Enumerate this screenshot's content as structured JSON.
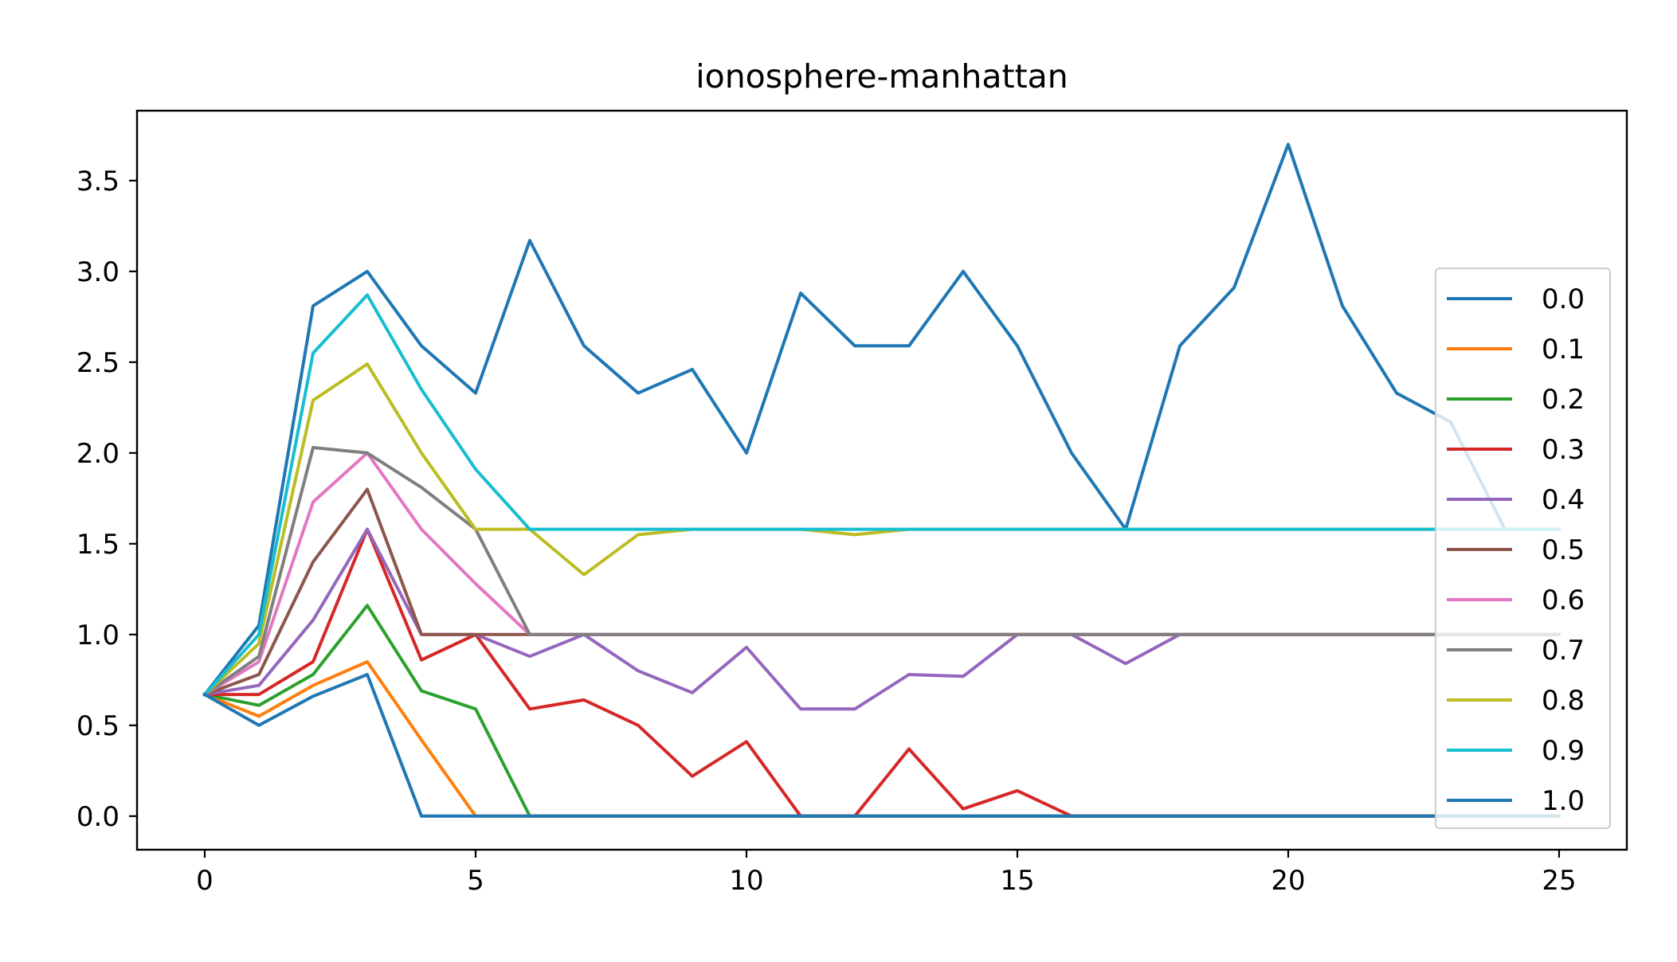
{
  "chart_data": {
    "type": "line",
    "title": "ionosphere-manhattan",
    "xlabel": "",
    "ylabel": "",
    "xlim": [
      -1.25,
      26.25
    ],
    "ylim": [
      -0.185,
      3.885
    ],
    "xticks": [
      0,
      5,
      10,
      15,
      20,
      25
    ],
    "xtick_labels": [
      "0",
      "5",
      "10",
      "15",
      "20",
      "25"
    ],
    "yticks": [
      0.0,
      0.5,
      1.0,
      1.5,
      2.0,
      2.5,
      3.0,
      3.5
    ],
    "ytick_labels": [
      "0.0",
      "0.5",
      "1.0",
      "1.5",
      "2.0",
      "2.5",
      "3.0",
      "3.5"
    ],
    "grid": false,
    "legend": {
      "placement": "right",
      "framealpha": 0.8
    },
    "x": [
      0,
      1,
      2,
      3,
      4,
      5,
      6,
      7,
      8,
      9,
      10,
      11,
      12,
      13,
      14,
      15,
      16,
      17,
      18,
      19,
      20,
      21,
      22,
      23,
      24,
      25
    ],
    "series": [
      {
        "name": "0.0",
        "color": "#1f77b4",
        "values": [
          0.67,
          1.05,
          2.81,
          3.0,
          2.59,
          2.33,
          3.17,
          2.59,
          2.33,
          2.46,
          2.0,
          2.88,
          2.59,
          2.59,
          3.0,
          2.59,
          2.0,
          1.58,
          2.59,
          2.91,
          3.7,
          2.81,
          2.33,
          2.17,
          1.58,
          1.58
        ]
      },
      {
        "name": "0.1",
        "color": "#ff7f0e",
        "values": [
          0.67,
          0.55,
          0.72,
          0.85,
          0.42,
          0.0,
          0.0,
          0.0,
          0.0,
          0.0,
          0.0,
          0.0,
          0.0,
          0.0,
          0.0,
          0.0,
          0.0,
          0.0,
          0.0,
          0.0,
          0.0,
          0.0,
          0.0,
          0.0,
          0.0,
          0.0
        ]
      },
      {
        "name": "0.2",
        "color": "#2ca02c",
        "values": [
          0.67,
          0.61,
          0.78,
          1.16,
          0.69,
          0.59,
          0.0,
          0.0,
          0.0,
          0.0,
          0.0,
          0.0,
          0.0,
          0.0,
          0.0,
          0.0,
          0.0,
          0.0,
          0.0,
          0.0,
          0.0,
          0.0,
          0.0,
          0.0,
          0.0,
          0.0
        ]
      },
      {
        "name": "0.3",
        "color": "#d62728",
        "values": [
          0.67,
          0.67,
          0.85,
          1.58,
          0.86,
          1.0,
          0.59,
          0.64,
          0.5,
          0.22,
          0.41,
          0.0,
          0.0,
          0.37,
          0.04,
          0.14,
          0.0,
          0.0,
          0.0,
          0.0,
          0.0,
          0.0,
          0.0,
          0.0,
          0.0,
          0.0
        ]
      },
      {
        "name": "0.4",
        "color": "#9467bd",
        "values": [
          0.67,
          0.72,
          1.08,
          1.58,
          1.0,
          1.0,
          0.88,
          1.0,
          0.8,
          0.68,
          0.93,
          0.59,
          0.59,
          0.78,
          0.77,
          1.0,
          1.0,
          0.84,
          1.0,
          1.0,
          1.0,
          1.0,
          1.0,
          1.0,
          1.0,
          1.0
        ]
      },
      {
        "name": "0.5",
        "color": "#8c564b",
        "values": [
          0.67,
          0.78,
          1.4,
          1.8,
          1.0,
          1.0,
          1.0,
          1.0,
          1.0,
          1.0,
          1.0,
          1.0,
          1.0,
          1.0,
          1.0,
          1.0,
          1.0,
          1.0,
          1.0,
          1.0,
          1.0,
          1.0,
          1.0,
          1.0,
          1.0,
          1.0
        ]
      },
      {
        "name": "0.6",
        "color": "#e377c2",
        "values": [
          0.67,
          0.85,
          1.73,
          2.0,
          1.58,
          1.28,
          1.0,
          1.0,
          1.0,
          1.0,
          1.0,
          1.0,
          1.0,
          1.0,
          1.0,
          1.0,
          1.0,
          1.0,
          1.0,
          1.0,
          1.0,
          1.0,
          1.0,
          1.0,
          1.0,
          1.0
        ]
      },
      {
        "name": "0.7",
        "color": "#7f7f7f",
        "values": [
          0.67,
          0.88,
          2.03,
          2.0,
          1.81,
          1.58,
          1.0,
          1.0,
          1.0,
          1.0,
          1.0,
          1.0,
          1.0,
          1.0,
          1.0,
          1.0,
          1.0,
          1.0,
          1.0,
          1.0,
          1.0,
          1.0,
          1.0,
          1.0,
          1.0,
          1.0
        ]
      },
      {
        "name": "0.8",
        "color": "#bcbd22",
        "values": [
          0.67,
          0.95,
          2.29,
          2.49,
          2.0,
          1.58,
          1.58,
          1.33,
          1.55,
          1.58,
          1.58,
          1.58,
          1.55,
          1.58,
          1.58,
          1.58,
          1.58,
          1.58,
          1.58,
          1.58,
          1.58,
          1.58,
          1.58,
          1.58,
          1.58,
          1.58
        ]
      },
      {
        "name": "0.9",
        "color": "#17becf",
        "values": [
          0.67,
          1.0,
          2.55,
          2.87,
          2.35,
          1.91,
          1.58,
          1.58,
          1.58,
          1.58,
          1.58,
          1.58,
          1.58,
          1.58,
          1.58,
          1.58,
          1.58,
          1.58,
          1.58,
          1.58,
          1.58,
          1.58,
          1.58,
          1.58,
          1.58,
          1.58
        ]
      },
      {
        "name": "1.0",
        "color": "#1f77b4",
        "values": [
          0.67,
          0.5,
          0.66,
          0.78,
          0.0,
          0.0,
          0.0,
          0.0,
          0.0,
          0.0,
          0.0,
          0.0,
          0.0,
          0.0,
          0.0,
          0.0,
          0.0,
          0.0,
          0.0,
          0.0,
          0.0,
          0.0,
          0.0,
          0.0,
          0.0,
          0.0
        ]
      }
    ]
  }
}
